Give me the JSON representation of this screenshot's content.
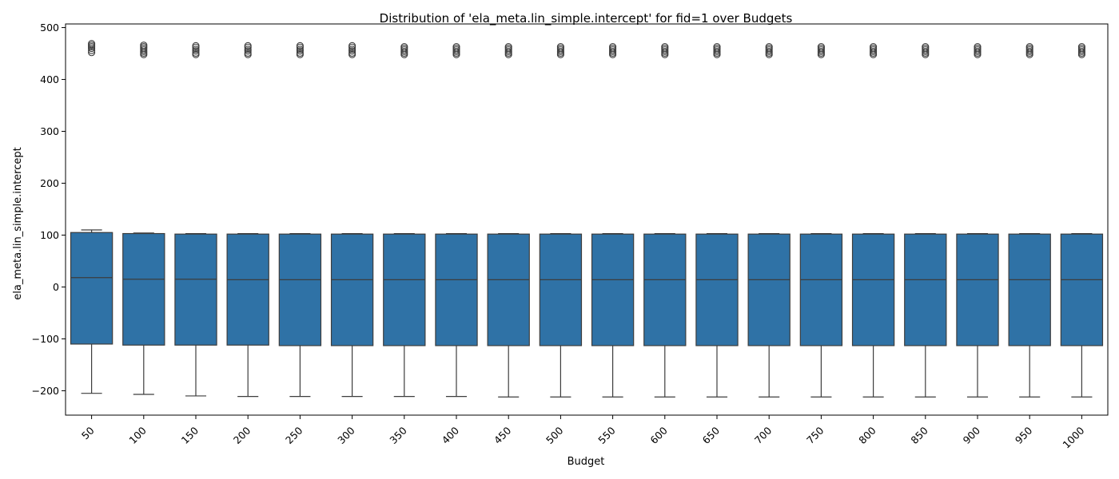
{
  "chart_data": {
    "type": "boxplot",
    "title": "Distribution of 'ela_meta.lin_simple.intercept' for fid=1 over Budgets",
    "xlabel": "Budget",
    "ylabel": "ela_meta.lin_simple.intercept",
    "ylim": [
      -247,
      507
    ],
    "yticks": [
      -200,
      -100,
      0,
      100,
      200,
      300,
      400,
      500
    ],
    "ytick_labels": [
      "−200",
      "−100",
      "0",
      "100",
      "200",
      "300",
      "400",
      "500"
    ],
    "grid": false,
    "legend": "none",
    "box_color": "#2f72a6",
    "categories": [
      "50",
      "100",
      "150",
      "200",
      "250",
      "300",
      "350",
      "400",
      "450",
      "500",
      "550",
      "600",
      "650",
      "700",
      "750",
      "800",
      "850",
      "900",
      "950",
      "1000"
    ],
    "boxes": [
      {
        "whislo": -205,
        "q1": -110,
        "med": 18,
        "q3": 105,
        "whishi": 110,
        "fliers": [
          452,
          456,
          460,
          463,
          466,
          469
        ]
      },
      {
        "whislo": -207,
        "q1": -112,
        "med": 15,
        "q3": 103,
        "whishi": 104,
        "fliers": [
          448,
          451,
          454,
          457,
          460,
          463,
          466
        ]
      },
      {
        "whislo": -210,
        "q1": -112,
        "med": 15,
        "q3": 102,
        "whishi": 103,
        "fliers": [
          448,
          451,
          455,
          458,
          462,
          465
        ]
      },
      {
        "whislo": -211,
        "q1": -112,
        "med": 14,
        "q3": 102,
        "whishi": 103,
        "fliers": [
          448,
          451,
          455,
          458,
          462,
          465
        ]
      },
      {
        "whislo": -211,
        "q1": -113,
        "med": 14,
        "q3": 102,
        "whishi": 103,
        "fliers": [
          448,
          451,
          455,
          458,
          462,
          465
        ]
      },
      {
        "whislo": -211,
        "q1": -113,
        "med": 14,
        "q3": 102,
        "whishi": 103,
        "fliers": [
          448,
          451,
          455,
          458,
          462,
          465
        ]
      },
      {
        "whislo": -211,
        "q1": -113,
        "med": 14,
        "q3": 102,
        "whishi": 103,
        "fliers": [
          448,
          451,
          454,
          457,
          460,
          463
        ]
      },
      {
        "whislo": -211,
        "q1": -113,
        "med": 14,
        "q3": 102,
        "whishi": 103,
        "fliers": [
          448,
          451,
          454,
          457,
          460,
          463
        ]
      },
      {
        "whislo": -212,
        "q1": -113,
        "med": 14,
        "q3": 102,
        "whishi": 103,
        "fliers": [
          448,
          451,
          454,
          457,
          460,
          463
        ]
      },
      {
        "whislo": -212,
        "q1": -113,
        "med": 14,
        "q3": 102,
        "whishi": 103,
        "fliers": [
          448,
          451,
          454,
          457,
          460,
          463
        ]
      },
      {
        "whislo": -212,
        "q1": -113,
        "med": 14,
        "q3": 102,
        "whishi": 103,
        "fliers": [
          448,
          451,
          454,
          457,
          460,
          463
        ]
      },
      {
        "whislo": -212,
        "q1": -113,
        "med": 14,
        "q3": 102,
        "whishi": 103,
        "fliers": [
          448,
          451,
          454,
          457,
          460,
          463
        ]
      },
      {
        "whislo": -212,
        "q1": -113,
        "med": 14,
        "q3": 102,
        "whishi": 103,
        "fliers": [
          448,
          451,
          454,
          457,
          460,
          463
        ]
      },
      {
        "whislo": -212,
        "q1": -113,
        "med": 14,
        "q3": 102,
        "whishi": 103,
        "fliers": [
          448,
          451,
          454,
          457,
          460,
          463
        ]
      },
      {
        "whislo": -212,
        "q1": -113,
        "med": 14,
        "q3": 102,
        "whishi": 103,
        "fliers": [
          448,
          451,
          454,
          457,
          460,
          463
        ]
      },
      {
        "whislo": -212,
        "q1": -113,
        "med": 14,
        "q3": 102,
        "whishi": 103,
        "fliers": [
          448,
          451,
          454,
          457,
          460,
          463
        ]
      },
      {
        "whislo": -212,
        "q1": -113,
        "med": 14,
        "q3": 102,
        "whishi": 103,
        "fliers": [
          448,
          451,
          454,
          457,
          460,
          463
        ]
      },
      {
        "whislo": -212,
        "q1": -113,
        "med": 14,
        "q3": 102,
        "whishi": 103,
        "fliers": [
          448,
          451,
          454,
          457,
          460,
          463
        ]
      },
      {
        "whislo": -212,
        "q1": -113,
        "med": 14,
        "q3": 102,
        "whishi": 103,
        "fliers": [
          448,
          451,
          454,
          457,
          460,
          463
        ]
      },
      {
        "whislo": -212,
        "q1": -113,
        "med": 14,
        "q3": 102,
        "whishi": 103,
        "fliers": [
          448,
          451,
          454,
          457,
          460,
          463
        ]
      }
    ]
  }
}
